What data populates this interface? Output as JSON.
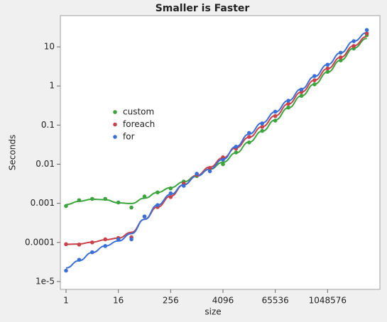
{
  "chart_data": {
    "type": "scatter",
    "title": "Smaller is Faster",
    "xlabel": "size",
    "ylabel": "Seconds",
    "x": [
      1,
      2,
      4,
      8,
      16,
      32,
      64,
      128,
      256,
      512,
      1024,
      2048,
      4096,
      8192,
      16384,
      32768,
      65536,
      131072,
      262144,
      524288,
      1048576,
      2097152,
      4194304,
      8388608
    ],
    "series": [
      {
        "name": "custom",
        "color": "#3ca43c",
        "values": [
          0.00085,
          0.0012,
          0.0013,
          0.0013,
          0.00105,
          0.00078,
          0.0015,
          0.0019,
          0.0024,
          0.0036,
          0.005,
          0.0078,
          0.01,
          0.02,
          0.036,
          0.071,
          0.13,
          0.28,
          0.56,
          1.1,
          2.3,
          4.5,
          9.1,
          20
        ]
      },
      {
        "name": "foreach",
        "color": "#c8414b",
        "values": [
          9e-05,
          8.8e-05,
          0.0001,
          0.00012,
          0.00013,
          0.000135,
          0.00046,
          0.0008,
          0.00145,
          0.0032,
          0.0053,
          0.008,
          0.015,
          0.025,
          0.05,
          0.09,
          0.17,
          0.35,
          0.7,
          1.4,
          2.8,
          5.4,
          10.5,
          22
        ]
      },
      {
        "name": "for",
        "color": "#3a6fd8",
        "values": [
          1.9e-05,
          3.6e-05,
          5.6e-05,
          8.1e-05,
          0.00012,
          0.00012,
          0.00046,
          0.0009,
          0.0018,
          0.0028,
          0.0057,
          0.0066,
          0.013,
          0.028,
          0.063,
          0.11,
          0.22,
          0.42,
          0.81,
          1.8,
          3.5,
          7.1,
          14,
          27
        ]
      }
    ],
    "xscale": "log",
    "yscale": "log",
    "xlim": [
      0.74,
      16777216
    ],
    "xticks": [
      1,
      16,
      256,
      4096,
      65536,
      1048576
    ],
    "ylim": [
      6.3e-06,
      63
    ],
    "yticks": [
      10,
      1,
      0.1,
      0.01,
      0.001,
      0.0001,
      {
        "value": 1e-05,
        "label": "1e-5"
      }
    ]
  }
}
